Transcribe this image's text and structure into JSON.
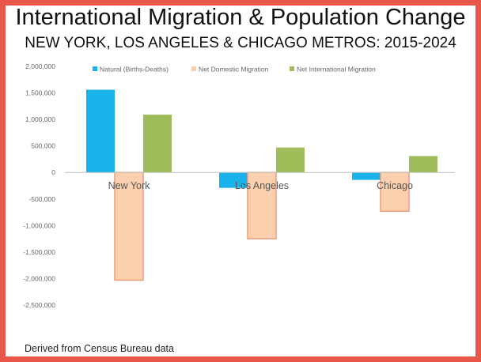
{
  "title": "International Migration & Population Change",
  "subtitle": "NEW YORK, LOS ANGELES & CHICAGO METROS: 2015-2024",
  "source": "Derived from Census Bureau data",
  "colors": {
    "frame": "#e8574a",
    "natural": "#1ab2ea",
    "domestic": "#fbd0ae",
    "domestic_border": "#ee9e80",
    "international": "#9ebd5a"
  },
  "chart_data": {
    "type": "bar",
    "categories": [
      "New York",
      "Los Angeles",
      "Chicago"
    ],
    "series": [
      {
        "name": "Natural (Births-Deaths)",
        "values": [
          1560000,
          -290000,
          -140000
        ]
      },
      {
        "name": "Net Domestic Migration",
        "values": [
          -2030000,
          -1250000,
          -730000
        ]
      },
      {
        "name": "Net International Migration",
        "values": [
          1090000,
          470000,
          310000
        ]
      }
    ],
    "ylim": [
      -2500000,
      2000000
    ],
    "yticks": [
      "2,000,000",
      "1,500,000",
      "1,000,000",
      "500,000",
      "0",
      "-500,000",
      "-1,000,000",
      "-1,500,000",
      "-2,000,000",
      "-2,500,000"
    ],
    "legend_position": "top",
    "grid": false
  }
}
